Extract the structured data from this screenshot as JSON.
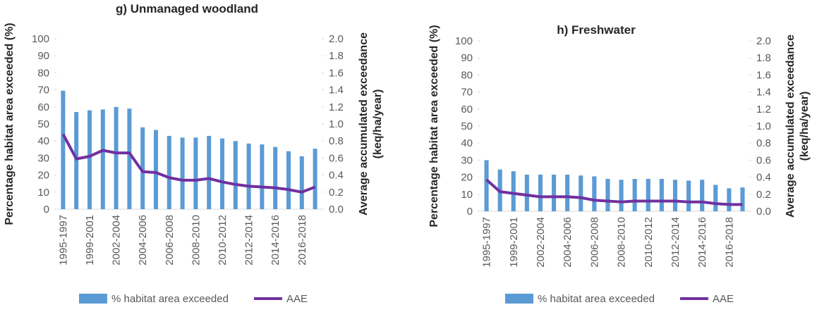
{
  "chart_data": [
    {
      "type": "bar-line",
      "title": "g) Unmanaged woodland",
      "ylabel": "Percentage habitat area exceeded (%)",
      "y2label": [
        "Average accumulated exceedance",
        "(keq/ha/year)"
      ],
      "categories": [
        "1995-1997",
        null,
        "1999-2001",
        null,
        "2002-2004",
        null,
        "2004-2006",
        null,
        "2006-2008",
        null,
        "2008-2010",
        null,
        "2010-2012",
        null,
        "2012-2014",
        null,
        "2014-2016",
        null,
        "2016-2018",
        null
      ],
      "series": [
        {
          "name": "% habitat area exceeded",
          "color": "#5b9bd5",
          "values": [
            69.5,
            57,
            58,
            58.5,
            60,
            59,
            48,
            46.5,
            43,
            42,
            42,
            43,
            41.5,
            40,
            38.5,
            38,
            36.5,
            34,
            31,
            35.5
          ]
        },
        {
          "name": "AAE",
          "color": "#7030a0",
          "axis": "y2",
          "values": [
            0.88,
            0.59,
            0.62,
            0.69,
            0.66,
            0.66,
            0.44,
            0.43,
            0.37,
            0.34,
            0.34,
            0.36,
            0.32,
            0.29,
            0.27,
            0.26,
            0.25,
            0.23,
            0.2,
            0.26
          ]
        }
      ],
      "ylim": [
        0,
        100
      ],
      "yticks": [
        0,
        10,
        20,
        30,
        40,
        50,
        60,
        70,
        80,
        90,
        100
      ],
      "y2lim": [
        0,
        2
      ],
      "y2ticks": [
        {
          "value": 0,
          "label": "0.0"
        },
        {
          "value": 0.2,
          "label": "0.2"
        },
        {
          "value": 0.4,
          "label": "0.4"
        },
        {
          "value": 0.6,
          "label": "0.6"
        },
        {
          "value": 0.8,
          "label": "0.8"
        },
        {
          "value": 1,
          "label": "1.0"
        },
        {
          "value": 1.2,
          "label": "1.2"
        },
        {
          "value": 1.4,
          "label": "1.4"
        },
        {
          "value": 1.6,
          "label": "1.6"
        },
        {
          "value": 1.8,
          "label": "1.8"
        },
        {
          "value": 2,
          "label": "2.0"
        }
      ],
      "legend": "bottom"
    },
    {
      "type": "bar-line",
      "title": "h) Freshwater",
      "ylabel": "Percentage habitat area exceeded (%)",
      "y2label": [
        "Average accumulated exceedance",
        "(keq/ha/year)"
      ],
      "categories": [
        "1995-1997",
        null,
        "1999-2001",
        null,
        "2002-2004",
        null,
        "2004-2006",
        null,
        "2006-2008",
        null,
        "2008-2010",
        null,
        "2010-2012",
        null,
        "2012-2014",
        null,
        "2014-2016",
        null,
        "2016-2018",
        null
      ],
      "series": [
        {
          "name": "% habitat area exceeded",
          "color": "#5b9bd5",
          "values": [
            30,
            24.5,
            23.5,
            21.5,
            21.5,
            21.5,
            21.5,
            21,
            20.5,
            19,
            18.5,
            19,
            19,
            19,
            18.5,
            18,
            18.5,
            15.5,
            13.5,
            14
          ]
        },
        {
          "name": "AAE",
          "color": "#7030a0",
          "axis": "y2",
          "values": [
            0.37,
            0.23,
            0.21,
            0.19,
            0.17,
            0.17,
            0.17,
            0.16,
            0.13,
            0.12,
            0.11,
            0.12,
            0.12,
            0.12,
            0.12,
            0.11,
            0.11,
            0.09,
            0.08,
            0.08
          ]
        }
      ],
      "ylim": [
        0,
        100
      ],
      "yticks": [
        0,
        10,
        20,
        30,
        40,
        50,
        60,
        70,
        80,
        90,
        100
      ],
      "y2lim": [
        0,
        2
      ],
      "y2ticks": [
        {
          "value": 0,
          "label": "0.0"
        },
        {
          "value": 0.2,
          "label": "0.2"
        },
        {
          "value": 0.4,
          "label": "0.4"
        },
        {
          "value": 0.6,
          "label": "0.6"
        },
        {
          "value": 0.8,
          "label": "0.8"
        },
        {
          "value": 1,
          "label": "1.0"
        },
        {
          "value": 1.2,
          "label": "1.2"
        },
        {
          "value": 1.4,
          "label": "1.4"
        },
        {
          "value": 1.6,
          "label": "1.6"
        },
        {
          "value": 1.8,
          "label": "1.8"
        },
        {
          "value": 2,
          "label": "2.0"
        }
      ],
      "legend": "bottom"
    }
  ]
}
